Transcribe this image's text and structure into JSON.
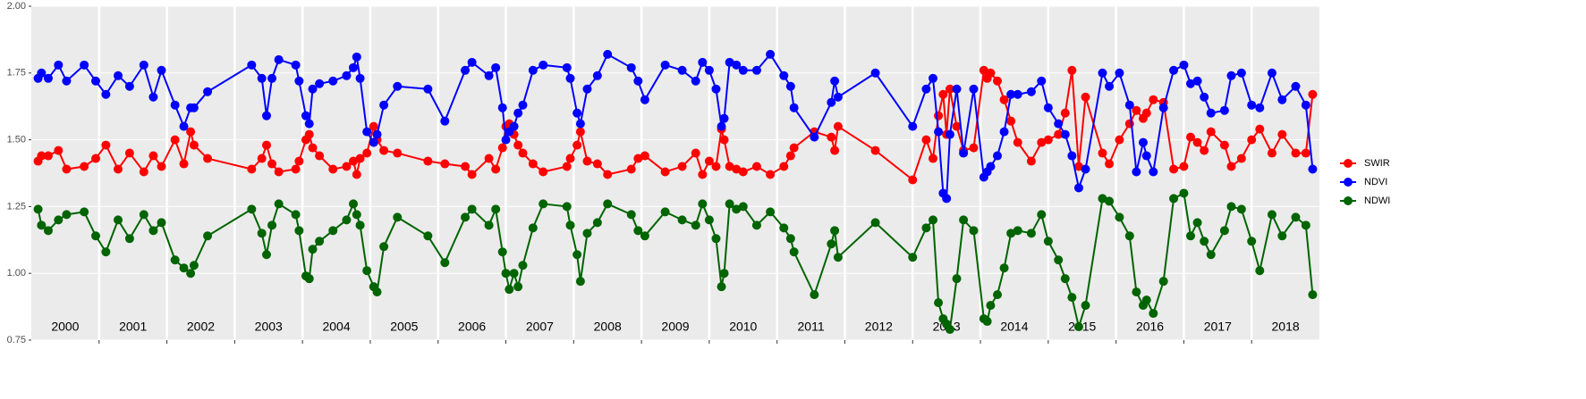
{
  "chart_data": {
    "type": "line",
    "x": [
      2000.1,
      2000.15,
      2000.25,
      2000.4,
      2000.52,
      2000.78,
      2000.95,
      2001.1,
      2001.28,
      2001.45,
      2001.66,
      2001.8,
      2001.92,
      2002.12,
      2002.25,
      2002.35,
      2002.4,
      2002.6,
      2003.25,
      2003.4,
      2003.47,
      2003.55,
      2003.65,
      2003.9,
      2003.95,
      2004.05,
      2004.1,
      2004.15,
      2004.25,
      2004.45,
      2004.65,
      2004.75,
      2004.8,
      2004.85,
      2004.95,
      2005.05,
      2005.1,
      2005.2,
      2005.4,
      2005.85,
      2006.1,
      2006.4,
      2006.5,
      2006.75,
      2006.85,
      2006.95,
      2007.0,
      2007.05,
      2007.12,
      2007.18,
      2007.25,
      2007.4,
      2007.55,
      2007.9,
      2007.95,
      2008.05,
      2008.1,
      2008.2,
      2008.35,
      2008.5,
      2008.85,
      2008.95,
      2009.05,
      2009.35,
      2009.6,
      2009.8,
      2009.9,
      2010.0,
      2010.1,
      2010.18,
      2010.22,
      2010.3,
      2010.4,
      2010.5,
      2010.7,
      2010.9,
      2011.1,
      2011.2,
      2011.25,
      2011.55,
      2011.8,
      2011.85,
      2011.9,
      2012.45,
      2013.0,
      2013.2,
      2013.3,
      2013.38,
      2013.45,
      2013.5,
      2013.55,
      2013.65,
      2013.75,
      2013.9,
      2014.05,
      2014.1,
      2014.15,
      2014.25,
      2014.35,
      2014.45,
      2014.55,
      2014.75,
      2014.9,
      2015.0,
      2015.15,
      2015.25,
      2015.35,
      2015.45,
      2015.55,
      2015.8,
      2015.9,
      2016.05,
      2016.2,
      2016.3,
      2016.4,
      2016.45,
      2016.55,
      2016.7,
      2016.85,
      2017.0,
      2017.1,
      2017.2,
      2017.3,
      2017.4,
      2017.6,
      2017.7,
      2017.85,
      2018.0,
      2018.12,
      2018.3,
      2018.45,
      2018.65,
      2018.8,
      2018.9
    ],
    "series": [
      {
        "name": "SWIR",
        "color": "#ff0000",
        "values": [
          1.42,
          1.44,
          1.44,
          1.46,
          1.39,
          1.4,
          1.43,
          1.48,
          1.39,
          1.45,
          1.38,
          1.44,
          1.4,
          1.5,
          1.41,
          1.53,
          1.48,
          1.43,
          1.39,
          1.43,
          1.48,
          1.41,
          1.38,
          1.39,
          1.42,
          1.5,
          1.52,
          1.47,
          1.44,
          1.39,
          1.4,
          1.42,
          1.37,
          1.43,
          1.45,
          1.55,
          1.5,
          1.46,
          1.45,
          1.42,
          1.41,
          1.4,
          1.37,
          1.43,
          1.39,
          1.47,
          1.55,
          1.56,
          1.52,
          1.48,
          1.45,
          1.41,
          1.38,
          1.4,
          1.43,
          1.48,
          1.53,
          1.42,
          1.41,
          1.37,
          1.39,
          1.43,
          1.44,
          1.38,
          1.4,
          1.45,
          1.37,
          1.42,
          1.4,
          1.54,
          1.5,
          1.4,
          1.39,
          1.38,
          1.4,
          1.37,
          1.4,
          1.44,
          1.47,
          1.53,
          1.51,
          1.46,
          1.55,
          1.46,
          1.35,
          1.5,
          1.43,
          1.59,
          1.67,
          1.52,
          1.69,
          1.55,
          1.46,
          1.47,
          1.76,
          1.73,
          1.75,
          1.72,
          1.65,
          1.57,
          1.49,
          1.42,
          1.49,
          1.5,
          1.52,
          1.6,
          1.76,
          1.4,
          1.66,
          1.45,
          1.41,
          1.5,
          1.56,
          1.61,
          1.58,
          1.6,
          1.65,
          1.64,
          1.39,
          1.4,
          1.51,
          1.49,
          1.46,
          1.53,
          1.48,
          1.4,
          1.43,
          1.5,
          1.54,
          1.45,
          1.52,
          1.45,
          1.45,
          1.67
        ]
      },
      {
        "name": "NDVI",
        "color": "#0000ff",
        "values": [
          1.73,
          1.75,
          1.73,
          1.78,
          1.72,
          1.78,
          1.72,
          1.67,
          1.74,
          1.7,
          1.78,
          1.66,
          1.76,
          1.63,
          1.55,
          1.62,
          1.62,
          1.68,
          1.78,
          1.73,
          1.59,
          1.73,
          1.8,
          1.78,
          1.72,
          1.59,
          1.56,
          1.69,
          1.71,
          1.72,
          1.74,
          1.77,
          1.81,
          1.73,
          1.53,
          1.49,
          1.52,
          1.63,
          1.7,
          1.69,
          1.57,
          1.76,
          1.79,
          1.74,
          1.77,
          1.62,
          1.5,
          1.53,
          1.55,
          1.6,
          1.63,
          1.76,
          1.78,
          1.77,
          1.73,
          1.6,
          1.56,
          1.69,
          1.74,
          1.82,
          1.77,
          1.72,
          1.65,
          1.78,
          1.76,
          1.72,
          1.79,
          1.76,
          1.69,
          1.55,
          1.58,
          1.79,
          1.78,
          1.76,
          1.76,
          1.82,
          1.74,
          1.7,
          1.62,
          1.51,
          1.64,
          1.72,
          1.66,
          1.75,
          1.55,
          1.69,
          1.73,
          1.53,
          1.3,
          1.28,
          1.52,
          1.69,
          1.45,
          1.69,
          1.36,
          1.38,
          1.4,
          1.44,
          1.53,
          1.67,
          1.67,
          1.68,
          1.72,
          1.62,
          1.56,
          1.52,
          1.44,
          1.32,
          1.39,
          1.75,
          1.7,
          1.75,
          1.63,
          1.38,
          1.49,
          1.44,
          1.38,
          1.62,
          1.76,
          1.78,
          1.71,
          1.72,
          1.66,
          1.6,
          1.61,
          1.74,
          1.75,
          1.63,
          1.62,
          1.75,
          1.65,
          1.7,
          1.63,
          1.39
        ]
      },
      {
        "name": "NDWI",
        "color": "#006400",
        "values": [
          1.24,
          1.18,
          1.16,
          1.2,
          1.22,
          1.23,
          1.14,
          1.08,
          1.2,
          1.13,
          1.22,
          1.16,
          1.19,
          1.05,
          1.02,
          1.0,
          1.03,
          1.14,
          1.24,
          1.15,
          1.07,
          1.18,
          1.26,
          1.22,
          1.16,
          0.99,
          0.98,
          1.09,
          1.12,
          1.16,
          1.2,
          1.26,
          1.22,
          1.18,
          1.01,
          0.95,
          0.93,
          1.1,
          1.21,
          1.14,
          1.04,
          1.21,
          1.24,
          1.18,
          1.24,
          1.08,
          1.0,
          0.94,
          1.0,
          0.95,
          1.03,
          1.17,
          1.26,
          1.25,
          1.18,
          1.07,
          0.97,
          1.15,
          1.19,
          1.26,
          1.22,
          1.16,
          1.14,
          1.23,
          1.2,
          1.18,
          1.26,
          1.2,
          1.13,
          0.95,
          1.0,
          1.26,
          1.24,
          1.25,
          1.18,
          1.23,
          1.17,
          1.13,
          1.08,
          0.92,
          1.11,
          1.16,
          1.06,
          1.19,
          1.06,
          1.17,
          1.2,
          0.89,
          0.83,
          0.81,
          0.79,
          0.98,
          1.2,
          1.16,
          0.83,
          0.82,
          0.88,
          0.92,
          1.02,
          1.15,
          1.16,
          1.15,
          1.22,
          1.12,
          1.05,
          0.98,
          0.91,
          0.8,
          0.88,
          1.28,
          1.27,
          1.21,
          1.14,
          0.93,
          0.88,
          0.9,
          0.85,
          0.97,
          1.28,
          1.3,
          1.14,
          1.19,
          1.12,
          1.07,
          1.16,
          1.25,
          1.24,
          1.12,
          1.01,
          1.22,
          1.14,
          1.21,
          1.18,
          0.92
        ]
      }
    ],
    "xlim": [
      2000,
      2019
    ],
    "xticks": [
      2001,
      2002,
      2003,
      2004,
      2005,
      2006,
      2007,
      2008,
      2009,
      2010,
      2011,
      2012,
      2013,
      2014,
      2015,
      2016,
      2017,
      2018
    ],
    "year_labels": [
      2000,
      2001,
      2002,
      2003,
      2004,
      2005,
      2006,
      2007,
      2008,
      2009,
      2010,
      2011,
      2012,
      2013,
      2014,
      2015,
      2016,
      2017,
      2018
    ],
    "ylim": [
      0.75,
      2.0
    ],
    "yticks": [
      {
        "value": 0.75,
        "label": "0.75"
      },
      {
        "value": 1.0,
        "label": "1.00"
      },
      {
        "value": 1.25,
        "label": "1.25"
      },
      {
        "value": 1.5,
        "label": "1.50"
      },
      {
        "value": 1.75,
        "label": "1.75"
      },
      {
        "value": 2.0,
        "label": "2.00"
      }
    ],
    "grid": true,
    "legend": "right"
  }
}
